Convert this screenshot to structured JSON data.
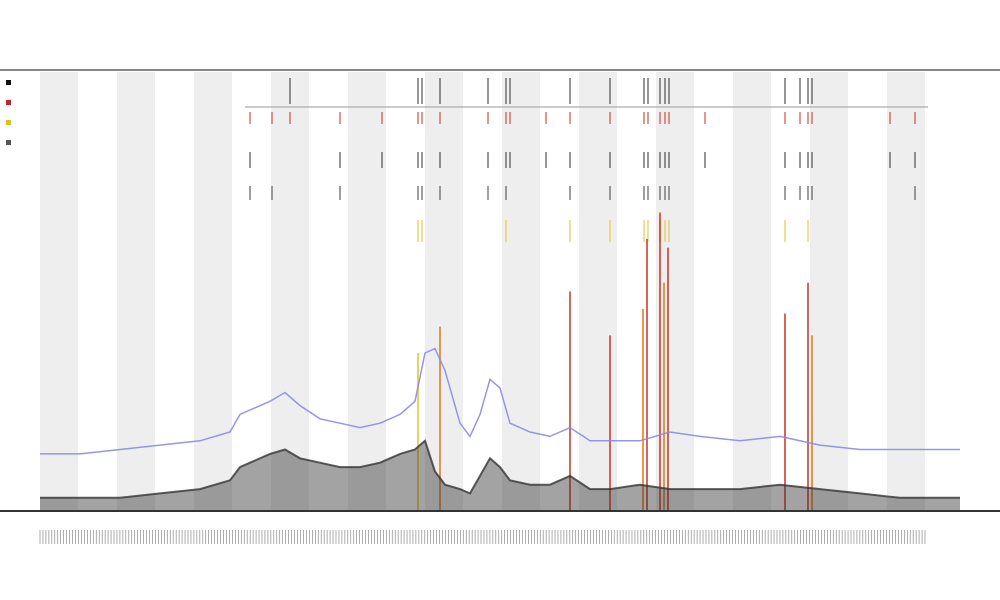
{
  "page": {
    "background": "#ffffff"
  },
  "chart_data": {
    "type": "line",
    "title": "",
    "subtitle_lines": [
      "",
      ""
    ],
    "xlabel": "",
    "ylabel": "",
    "grid": false,
    "legend_position": "top-left",
    "legend": [
      {
        "name": "",
        "color": "#111111"
      },
      {
        "name": "",
        "color": "#cc2222"
      },
      {
        "name": "",
        "color": "#e0c020"
      },
      {
        "name": "",
        "color": "#555555"
      }
    ],
    "colors": {
      "total_series": "#8a8ae8",
      "depth_series": "#333333",
      "band": "#eeeeee",
      "axis": "#333333",
      "event_red": "#d03020",
      "event_yellow": "#e8c030",
      "event_orange": "#e07818"
    },
    "x": {
      "min": 0,
      "max": 920,
      "tick_count": 300
    },
    "y": {
      "min": 0,
      "max": 100
    },
    "bands": [
      [
        0,
        38
      ],
      [
        77,
        115
      ],
      [
        154,
        192
      ],
      [
        231,
        269
      ],
      [
        308,
        346
      ],
      [
        385,
        423
      ],
      [
        462,
        500
      ],
      [
        539,
        577
      ],
      [
        616,
        654
      ],
      [
        693,
        731
      ],
      [
        770,
        808
      ],
      [
        847,
        885
      ]
    ],
    "series": [
      {
        "name": "",
        "role": "total",
        "points": [
          [
            0,
            13
          ],
          [
            40,
            13
          ],
          [
            80,
            14
          ],
          [
            120,
            15
          ],
          [
            160,
            16
          ],
          [
            190,
            18
          ],
          [
            200,
            22
          ],
          [
            210,
            23
          ],
          [
            230,
            25
          ],
          [
            245,
            27
          ],
          [
            260,
            24
          ],
          [
            280,
            21
          ],
          [
            300,
            20
          ],
          [
            320,
            19
          ],
          [
            340,
            20
          ],
          [
            360,
            22
          ],
          [
            375,
            25
          ],
          [
            385,
            36
          ],
          [
            395,
            37
          ],
          [
            405,
            32
          ],
          [
            420,
            20
          ],
          [
            430,
            17
          ],
          [
            440,
            22
          ],
          [
            450,
            30
          ],
          [
            460,
            28
          ],
          [
            470,
            20
          ],
          [
            490,
            18
          ],
          [
            510,
            17
          ],
          [
            530,
            19
          ],
          [
            550,
            16
          ],
          [
            570,
            16
          ],
          [
            600,
            16
          ],
          [
            630,
            18
          ],
          [
            660,
            17
          ],
          [
            700,
            16
          ],
          [
            740,
            17
          ],
          [
            780,
            15
          ],
          [
            820,
            14
          ],
          [
            860,
            14
          ],
          [
            900,
            14
          ],
          [
            920,
            14
          ]
        ]
      },
      {
        "name": "",
        "role": "depth",
        "points": [
          [
            0,
            3
          ],
          [
            40,
            3
          ],
          [
            80,
            3
          ],
          [
            120,
            4
          ],
          [
            160,
            5
          ],
          [
            190,
            7
          ],
          [
            200,
            10
          ],
          [
            210,
            11
          ],
          [
            230,
            13
          ],
          [
            245,
            14
          ],
          [
            260,
            12
          ],
          [
            280,
            11
          ],
          [
            300,
            10
          ],
          [
            320,
            10
          ],
          [
            340,
            11
          ],
          [
            360,
            13
          ],
          [
            375,
            14
          ],
          [
            385,
            16
          ],
          [
            395,
            9
          ],
          [
            405,
            6
          ],
          [
            420,
            5
          ],
          [
            430,
            4
          ],
          [
            440,
            8
          ],
          [
            450,
            12
          ],
          [
            460,
            10
          ],
          [
            470,
            7
          ],
          [
            490,
            6
          ],
          [
            510,
            6
          ],
          [
            530,
            8
          ],
          [
            550,
            5
          ],
          [
            570,
            5
          ],
          [
            600,
            6
          ],
          [
            630,
            5
          ],
          [
            660,
            5
          ],
          [
            700,
            5
          ],
          [
            740,
            6
          ],
          [
            780,
            5
          ],
          [
            820,
            4
          ],
          [
            860,
            3
          ],
          [
            900,
            3
          ],
          [
            920,
            3
          ]
        ]
      }
    ],
    "spikes": [
      {
        "x": 378,
        "height": 36,
        "color": "event_yellow"
      },
      {
        "x": 400,
        "height": 42,
        "color": "event_orange"
      },
      {
        "x": 530,
        "height": 50,
        "color": "event_red"
      },
      {
        "x": 570,
        "height": 40,
        "color": "event_red"
      },
      {
        "x": 603,
        "height": 46,
        "color": "event_orange"
      },
      {
        "x": 607,
        "height": 62,
        "color": "event_red"
      },
      {
        "x": 620,
        "height": 68,
        "color": "event_red"
      },
      {
        "x": 624,
        "height": 52,
        "color": "event_orange"
      },
      {
        "x": 628,
        "height": 60,
        "color": "event_red"
      },
      {
        "x": 745,
        "height": 45,
        "color": "event_red"
      },
      {
        "x": 768,
        "height": 52,
        "color": "event_red"
      },
      {
        "x": 772,
        "height": 40,
        "color": "event_orange"
      }
    ],
    "track_events": [
      {
        "x": 210,
        "rows": [
          1,
          2,
          3
        ]
      },
      {
        "x": 232,
        "rows": [
          1,
          3
        ]
      },
      {
        "x": 250,
        "rows": [
          0,
          1
        ]
      },
      {
        "x": 300,
        "rows": [
          1,
          2,
          3
        ]
      },
      {
        "x": 342,
        "rows": [
          1,
          2
        ]
      },
      {
        "x": 378,
        "rows": [
          0,
          1,
          2,
          3,
          4
        ]
      },
      {
        "x": 382,
        "rows": [
          0,
          1,
          2,
          3,
          4
        ]
      },
      {
        "x": 400,
        "rows": [
          0,
          1,
          2,
          3
        ]
      },
      {
        "x": 448,
        "rows": [
          0,
          1,
          2,
          3
        ]
      },
      {
        "x": 466,
        "rows": [
          0,
          1,
          2,
          3,
          4
        ]
      },
      {
        "x": 470,
        "rows": [
          0,
          1,
          2
        ]
      },
      {
        "x": 506,
        "rows": [
          1,
          2
        ]
      },
      {
        "x": 530,
        "rows": [
          0,
          1,
          2,
          3,
          4
        ]
      },
      {
        "x": 570,
        "rows": [
          0,
          1,
          2,
          3,
          4
        ]
      },
      {
        "x": 604,
        "rows": [
          0,
          1,
          2,
          3,
          4
        ]
      },
      {
        "x": 608,
        "rows": [
          0,
          1,
          2,
          3,
          4
        ]
      },
      {
        "x": 620,
        "rows": [
          0,
          1,
          2,
          3,
          4
        ]
      },
      {
        "x": 625,
        "rows": [
          0,
          1,
          2,
          3,
          4
        ]
      },
      {
        "x": 629,
        "rows": [
          0,
          1,
          2,
          3,
          4
        ]
      },
      {
        "x": 665,
        "rows": [
          1,
          2
        ]
      },
      {
        "x": 745,
        "rows": [
          0,
          1,
          2,
          3,
          4
        ]
      },
      {
        "x": 760,
        "rows": [
          0,
          1,
          2,
          3
        ]
      },
      {
        "x": 768,
        "rows": [
          0,
          1,
          2,
          3,
          4
        ]
      },
      {
        "x": 772,
        "rows": [
          0,
          1,
          2,
          3
        ]
      },
      {
        "x": 850,
        "rows": [
          1,
          2
        ]
      },
      {
        "x": 875,
        "rows": [
          1,
          2,
          3
        ]
      }
    ]
  }
}
